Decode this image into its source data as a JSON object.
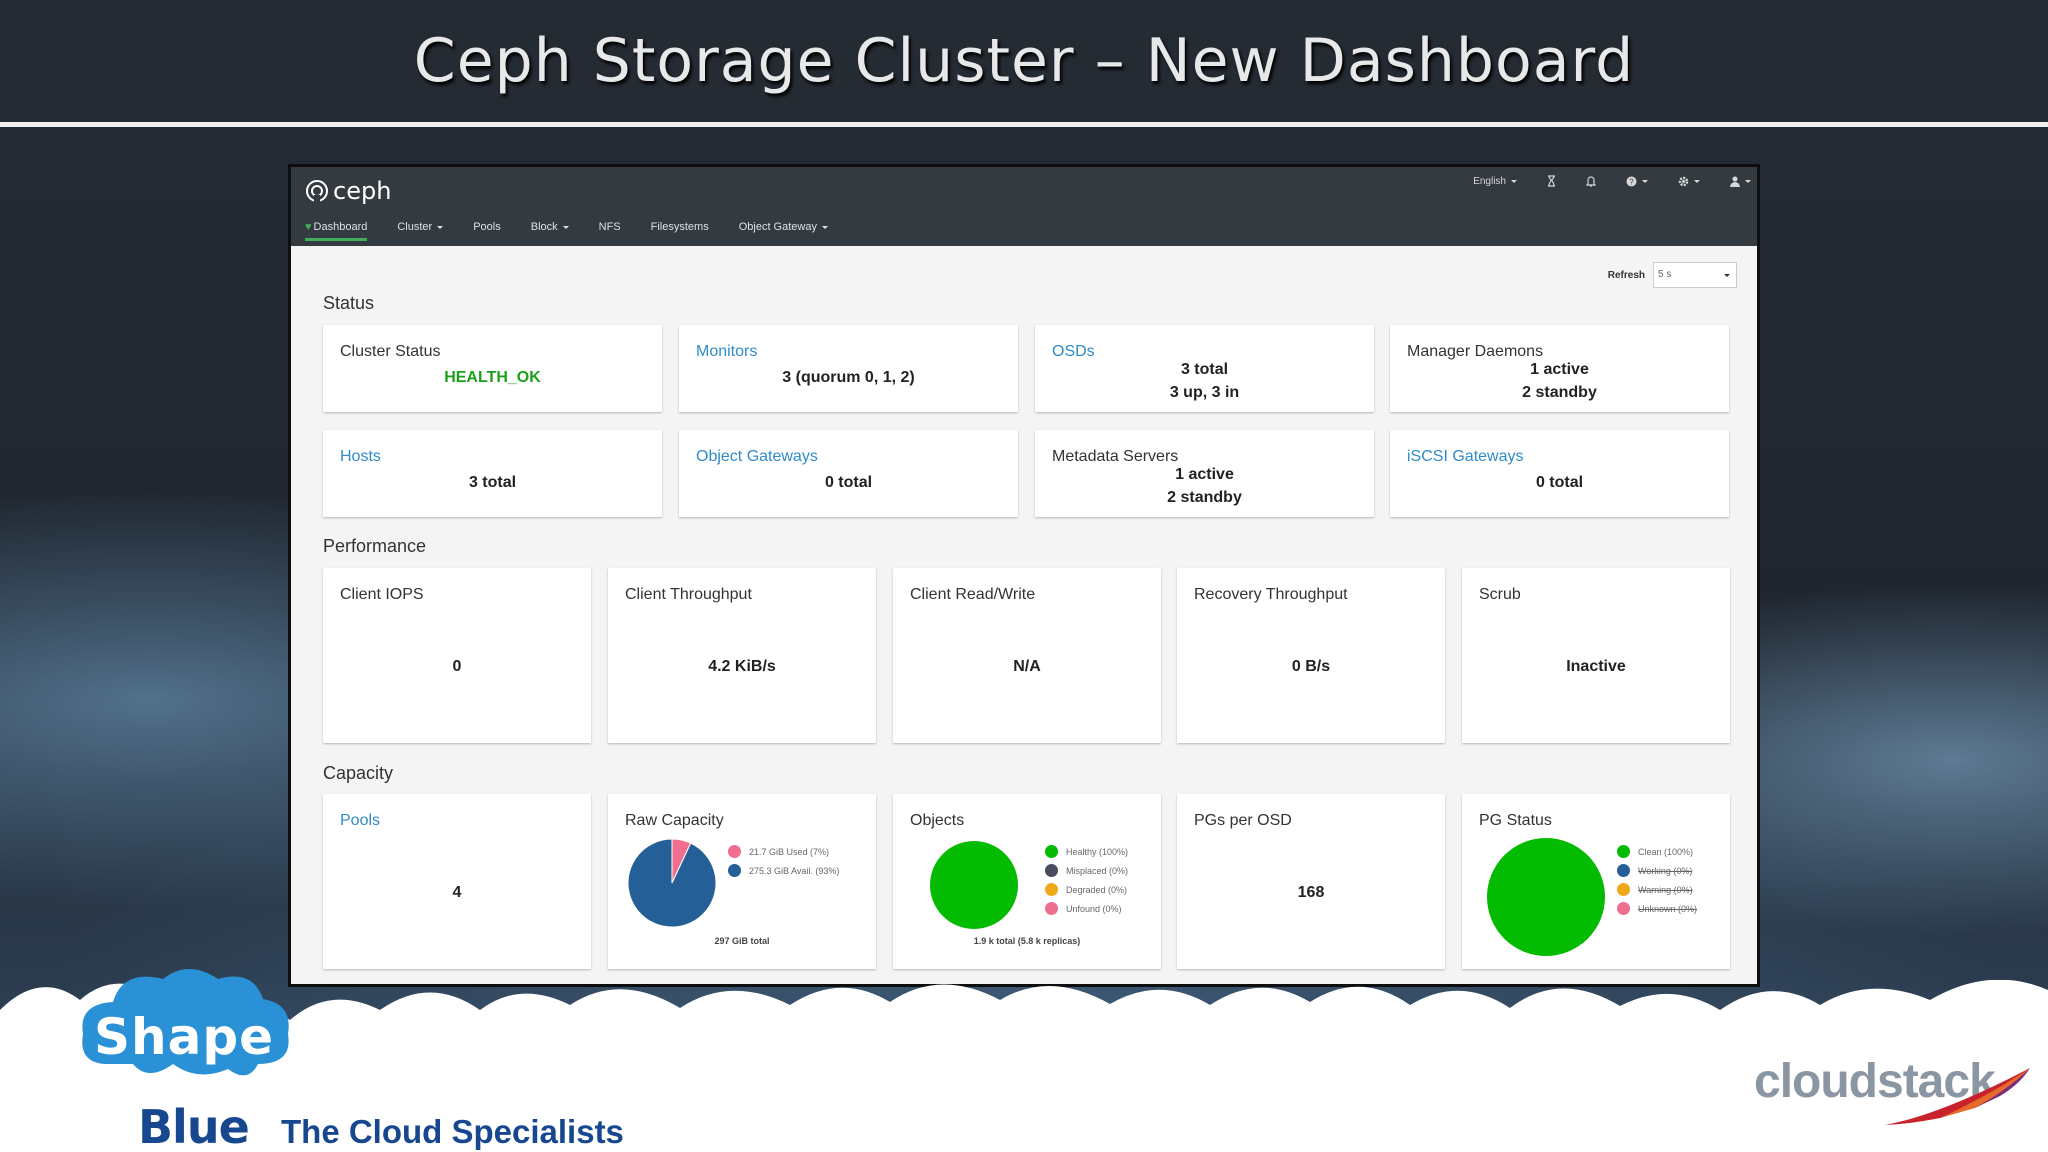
{
  "slide": {
    "title": "Ceph Storage Cluster – New Dashboard"
  },
  "ceph": {
    "logo": "ceph",
    "top_right": {
      "language": "English",
      "icons": [
        "hourglass-icon",
        "bell-icon",
        "help-icon",
        "gear-icon",
        "user-icon"
      ]
    },
    "tabs": [
      {
        "label": "Dashboard",
        "active": true
      },
      {
        "label": "Cluster",
        "dropdown": true
      },
      {
        "label": "Pools"
      },
      {
        "label": "Block",
        "dropdown": true
      },
      {
        "label": "NFS"
      },
      {
        "label": "Filesystems"
      },
      {
        "label": "Object Gateway",
        "dropdown": true
      }
    ],
    "refresh": {
      "label": "Refresh",
      "value": "5 s"
    },
    "sections": {
      "status": "Status",
      "performance": "Performance",
      "capacity": "Capacity"
    },
    "status_cards": {
      "cluster_status": {
        "title": "Cluster Status",
        "value": "HEALTH_OK"
      },
      "monitors": {
        "title": "Monitors",
        "value": "3 (quorum 0, 1, 2)"
      },
      "osds": {
        "title": "OSDs",
        "line1": "3 total",
        "line2": "3 up, 3 in"
      },
      "managers": {
        "title": "Manager Daemons",
        "line1": "1 active",
        "line2": "2 standby"
      },
      "hosts": {
        "title": "Hosts",
        "value": "3 total"
      },
      "object_gateways": {
        "title": "Object Gateways",
        "value": "0 total"
      },
      "metadata_servers": {
        "title": "Metadata Servers",
        "line1": "1 active",
        "line2": "2 standby"
      },
      "iscsi": {
        "title": "iSCSI Gateways",
        "value": "0 total"
      }
    },
    "performance_cards": {
      "iops": {
        "title": "Client IOPS",
        "value": "0"
      },
      "throughput": {
        "title": "Client Throughput",
        "value": "4.2 KiB/s"
      },
      "readwrite": {
        "title": "Client Read/Write",
        "value": "N/A"
      },
      "recovery": {
        "title": "Recovery Throughput",
        "value": "0 B/s"
      },
      "scrub": {
        "title": "Scrub",
        "value": "Inactive"
      }
    },
    "capacity_cards": {
      "pools": {
        "title": "Pools",
        "value": "4"
      },
      "raw": {
        "title": "Raw Capacity",
        "legend": [
          "21.7 GiB Used (7%)",
          "275.3 GiB Avail. (93%)"
        ],
        "total": "297 GiB total"
      },
      "objects": {
        "title": "Objects",
        "legend": [
          "Healthy (100%)",
          "Misplaced (0%)",
          "Degraded (0%)",
          "Unfound (0%)"
        ],
        "total": "1.9 k total (5.8 k replicas)"
      },
      "pgs_per_osd": {
        "title": "PGs per OSD",
        "value": "168"
      },
      "pg_status": {
        "title": "PG Status",
        "legend": [
          "Clean (100%)",
          "Working (0%)",
          "Warning (0%)",
          "Unknown (0%)"
        ]
      }
    },
    "colors": {
      "used": "#f06f8f",
      "avail": "#245f97",
      "healthy": "#03bb00",
      "misplaced": "#4a4c5e",
      "degraded": "#f0a818",
      "unfound": "#f06f8f",
      "clean": "#03bb00",
      "working": "#245f97",
      "warning": "#f0a818",
      "unknown": "#f06f8f"
    },
    "chart_data": [
      {
        "type": "pie",
        "title": "Raw Capacity",
        "categories": [
          "Used",
          "Avail."
        ],
        "values": [
          7,
          93
        ]
      },
      {
        "type": "pie",
        "title": "Objects",
        "categories": [
          "Healthy",
          "Misplaced",
          "Degraded",
          "Unfound"
        ],
        "values": [
          100,
          0,
          0,
          0
        ]
      },
      {
        "type": "pie",
        "title": "PG Status",
        "categories": [
          "Clean",
          "Working",
          "Warning",
          "Unknown"
        ],
        "values": [
          100,
          0,
          0,
          0
        ]
      }
    ]
  },
  "branding": {
    "shape": "Shape",
    "blue": "Blue",
    "tagline": "The Cloud Specialists",
    "cloudstack": "cloudstack"
  }
}
